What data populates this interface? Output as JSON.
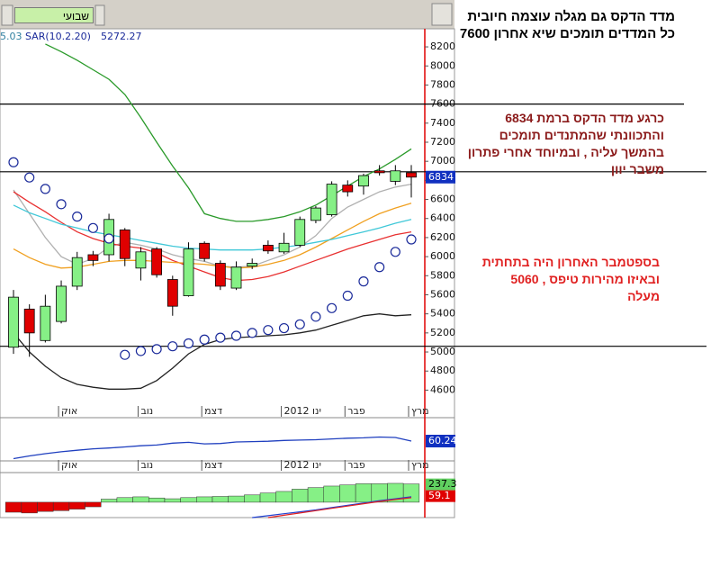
{
  "toolbar": {
    "selector": "שבועי"
  },
  "annotations": [
    {
      "color": "#000000",
      "lines": [
        "מדד הדקס גם מגלה עוצמה חיובית",
        "כל המדדים תומכים שיא אחרון 7600"
      ]
    },
    {
      "color": "#8b1a1a",
      "lines": [
        "כרגע מדד הדקס ברמת 6834",
        "והתכוונתי שהמתנדים תומכים",
        "בהמשך עליה , ובמיוחד אחרי פתרון",
        "משבר יוון"
      ]
    },
    {
      "color": "#e02020",
      "lines": [
        "בספטמבר האחרון היה בתחתית",
        "ובאיזו מהירות טיפס , 5060",
        "מעלה"
      ]
    }
  ],
  "chart_data": [
    {
      "type": "candlestick",
      "header": [
        "5.03",
        "SAR(10.2.20)",
        "5272.27"
      ],
      "categories": [
        null,
        null,
        null,
        "אוק",
        null,
        null,
        null,
        null,
        "נוב",
        null,
        null,
        null,
        "דצמ",
        null,
        null,
        null,
        null,
        "2012 ינו",
        null,
        null,
        null,
        "פבר",
        null,
        null,
        null,
        "מרץ"
      ],
      "open": [
        5050,
        5450,
        5120,
        5320,
        5690,
        6020,
        6020,
        6280,
        5880,
        6080,
        5760,
        5590,
        6140,
        5930,
        5670,
        5900,
        6120,
        6050,
        6120,
        6380,
        6440,
        6750,
        6740,
        6900,
        6790,
        6880
      ],
      "high": [
        5650,
        5500,
        5600,
        5750,
        6050,
        6060,
        6450,
        6300,
        6100,
        6100,
        5800,
        6150,
        6160,
        5960,
        5950,
        5980,
        6170,
        6250,
        6420,
        6530,
        6790,
        6800,
        6870,
        6960,
        6960,
        6960
      ],
      "low": [
        4980,
        4950,
        5100,
        5300,
        5650,
        5900,
        5950,
        5900,
        5750,
        5780,
        5380,
        5580,
        5950,
        5650,
        5650,
        5870,
        6030,
        6030,
        6100,
        6350,
        6420,
        6630,
        6650,
        6850,
        6750,
        6620
      ],
      "close": [
        5575,
        5200,
        5480,
        5690,
        5990,
        5960,
        6390,
        5980,
        6050,
        5810,
        5480,
        6080,
        5980,
        5690,
        5890,
        5930,
        6060,
        6140,
        6390,
        6510,
        6760,
        6680,
        6850,
        6880,
        6900,
        6834
      ],
      "up_color": "#86f086",
      "down_color": "#e00000",
      "lines": [
        {
          "color": "#2a9a2a",
          "values": [
            null,
            null,
            8230,
            8150,
            8060,
            7960,
            7860,
            7700,
            7460,
            7200,
            6950,
            6720,
            6450,
            6400,
            6370,
            6370,
            6390,
            6420,
            6470,
            6540,
            6640,
            6740,
            6840,
            6920,
            7020,
            7130
          ]
        },
        {
          "color": "#b0b0b0",
          "values": [
            6700,
            6450,
            6200,
            6000,
            5920,
            5980,
            6100,
            6150,
            6120,
            6080,
            6020,
            5980,
            5950,
            5900,
            5890,
            5900,
            5960,
            6020,
            6100,
            6220,
            6400,
            6520,
            6600,
            6680,
            6730,
            6760
          ]
        },
        {
          "color": "#222222",
          "values": [
            5200,
            5000,
            4850,
            4730,
            4660,
            4630,
            4610,
            4610,
            4620,
            4700,
            4830,
            4980,
            5080,
            5130,
            5150,
            5160,
            5170,
            5180,
            5200,
            5230,
            5280,
            5330,
            5380,
            5400,
            5380,
            5390
          ]
        },
        {
          "color": "#e83030",
          "values": [
            6680,
            6570,
            6470,
            6360,
            6260,
            6190,
            6140,
            6110,
            6090,
            6040,
            5960,
            5900,
            5840,
            5780,
            5750,
            5760,
            5790,
            5840,
            5900,
            5960,
            6020,
            6080,
            6130,
            6180,
            6230,
            6260
          ]
        },
        {
          "color": "#f0a020",
          "values": [
            6080,
            5990,
            5920,
            5880,
            5890,
            5920,
            5950,
            5960,
            5960,
            5950,
            5940,
            5930,
            5920,
            5900,
            5880,
            5890,
            5920,
            5960,
            6020,
            6100,
            6190,
            6280,
            6370,
            6450,
            6510,
            6560
          ]
        },
        {
          "color": "#40c8d8",
          "values": [
            6540,
            6460,
            6400,
            6340,
            6300,
            6260,
            6230,
            6200,
            6170,
            6140,
            6110,
            6090,
            6080,
            6070,
            6070,
            6070,
            6080,
            6100,
            6120,
            6150,
            6180,
            6220,
            6260,
            6300,
            6350,
            6390
          ]
        }
      ],
      "sar": {
        "color": "#1a2a9a",
        "values": [
          6990,
          6830,
          6710,
          6550,
          6420,
          6300,
          6190,
          4970,
          5010,
          5030,
          5060,
          5090,
          5130,
          5150,
          5170,
          5200,
          5230,
          5250,
          5290,
          5370,
          5460,
          5590,
          5740,
          5890,
          6050,
          6180
        ]
      },
      "hlines": [
        7600,
        6890,
        5060
      ],
      "ylim": [
        4330,
        8380
      ],
      "yticks": [
        4600,
        4800,
        5000,
        5200,
        5400,
        5600,
        5800,
        6000,
        6200,
        6400,
        6600,
        6800,
        7000,
        7200,
        7400,
        7600,
        7800,
        8000,
        8200
      ]
    },
    {
      "type": "line",
      "color": "#1f3fbf",
      "values": [
        55.6,
        56.3,
        56.9,
        57.4,
        57.8,
        58.2,
        58.4,
        58.7,
        59,
        59.2,
        59.7,
        59.9,
        59.5,
        59.6,
        60,
        60.1,
        60.2,
        60.4,
        60.5,
        60.6,
        60.8,
        61,
        61.1,
        61.3,
        61.2,
        60.24
      ],
      "ylim": [
        55,
        65
      ]
    },
    {
      "type": "bar",
      "up_color": "#86f086",
      "down_color": "#e00000",
      "values": [
        -130,
        -140,
        -120,
        -110,
        -90,
        -60,
        40,
        60,
        70,
        55,
        45,
        60,
        70,
        75,
        80,
        95,
        120,
        140,
        170,
        190,
        210,
        225,
        240,
        240,
        245,
        237.3
      ],
      "lines": [
        {
          "color": "#2040d0",
          "values": [
            null,
            null,
            null,
            null,
            null,
            null,
            null,
            null,
            null,
            null,
            null,
            null,
            null,
            null,
            null,
            -200,
            -175,
            -150,
            -125,
            -100,
            -70,
            -40,
            -10,
            20,
            45,
            70
          ]
        },
        {
          "color": "#e02020",
          "values": [
            null,
            null,
            null,
            null,
            null,
            null,
            null,
            null,
            null,
            null,
            null,
            null,
            null,
            null,
            null,
            null,
            -200,
            -170,
            -140,
            -110,
            -80,
            -50,
            -20,
            10,
            35,
            59.1
          ]
        }
      ],
      "ylim": [
        -200,
        350
      ]
    }
  ]
}
